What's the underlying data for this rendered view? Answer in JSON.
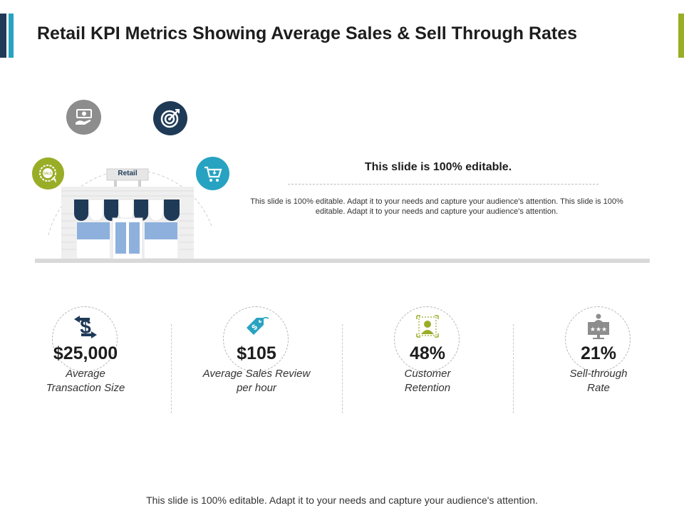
{
  "title": "Retail KPI Metrics Showing Average Sales & Sell Through Rates",
  "scene": {
    "store_sign": "Retail",
    "icons": [
      "money-hand-icon",
      "target-icon",
      "shopping-cart-icon",
      "sale-seal-icon"
    ]
  },
  "info": {
    "heading": "This slide is 100% editable.",
    "body": "This slide is 100% editable. Adapt it to your needs and capture your audience's attention. This slide is 100% editable. Adapt it to your needs and capture your audience's attention."
  },
  "kpis": [
    {
      "value": "$25,000",
      "label_line1": "Average",
      "label_line2": "Transaction Size",
      "icon": "dollar-exchange-icon"
    },
    {
      "value": "$105",
      "label_line1": "Average Sales Review",
      "label_line2": "per hour",
      "icon": "price-tag-icon"
    },
    {
      "value": "48%",
      "label_line1": "Customer",
      "label_line2": "Retention",
      "icon": "customer-icon"
    },
    {
      "value": "21%",
      "label_line1": "Sell-through",
      "label_line2": "Rate",
      "icon": "rating-board-icon"
    }
  ],
  "footer": "This slide is 100% editable.  Adapt it to your needs and capture your audience's attention.",
  "colors": {
    "navy": "#1f3a57",
    "teal": "#27a3c1",
    "green": "#9aad27",
    "gray": "#8d8d8d",
    "window_blue": "#8eb0dd"
  }
}
